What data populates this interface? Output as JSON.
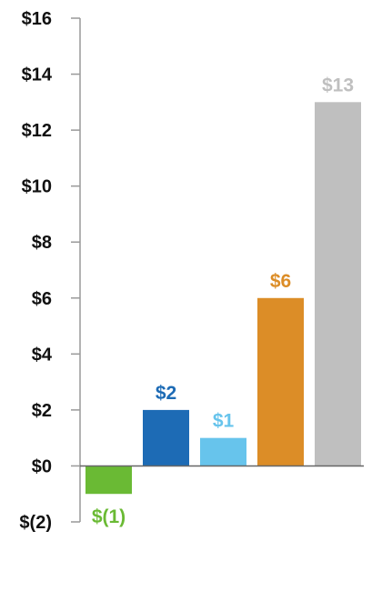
{
  "chart_data": {
    "type": "bar",
    "title": "",
    "xlabel": "",
    "ylabel": "",
    "ylim": [
      -2,
      16
    ],
    "y_ticks": [
      16,
      14,
      12,
      10,
      8,
      6,
      4,
      2,
      0,
      -2
    ],
    "y_tick_labels": [
      "$16",
      "$14",
      "$12",
      "$10",
      "$8",
      "$6",
      "$4",
      "$2",
      "$0",
      "$(2)"
    ],
    "grid": false,
    "legend": "none",
    "bars": [
      {
        "value": -1,
        "label": "$(1)",
        "color": "#6aba34"
      },
      {
        "value": 2,
        "label": "$2",
        "color": "#1d6bb5"
      },
      {
        "value": 1,
        "label": "$1",
        "color": "#67c4ec"
      },
      {
        "value": 6,
        "label": "$6",
        "color": "#dc8d27"
      },
      {
        "value": 13,
        "label": "$13",
        "color": "#bfbfbf"
      }
    ]
  }
}
